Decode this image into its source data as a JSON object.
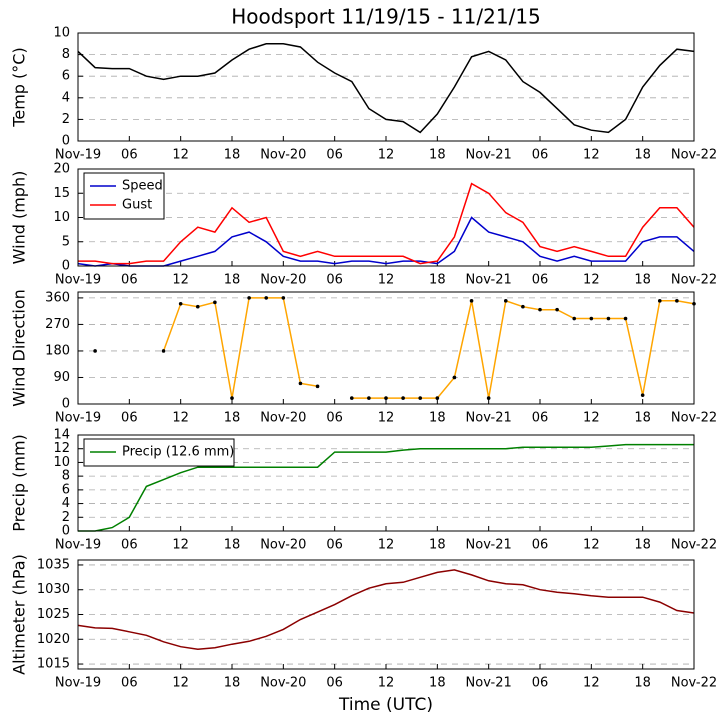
{
  "chart_data": [
    {
      "type": "line",
      "title": "Hoodsport 11/19/15 - 11/21/15",
      "ylabel": "Temp (°C)",
      "x": [
        0,
        2,
        4,
        6,
        8,
        10,
        12,
        14,
        16,
        18,
        20,
        22,
        24,
        26,
        28,
        30,
        32,
        34,
        36,
        38,
        40,
        42,
        44,
        46,
        48,
        50,
        52,
        54,
        56,
        58,
        60,
        62,
        64,
        66,
        68,
        70,
        72
      ],
      "xlim": [
        0,
        72
      ],
      "xticks": [
        {
          "value": 0,
          "label": "Nov-19"
        },
        {
          "value": 6,
          "label": "06"
        },
        {
          "value": 12,
          "label": "12"
        },
        {
          "value": 18,
          "label": "18"
        },
        {
          "value": 24,
          "label": "Nov-20"
        },
        {
          "value": 30,
          "label": "06"
        },
        {
          "value": 36,
          "label": "12"
        },
        {
          "value": 42,
          "label": "18"
        },
        {
          "value": 48,
          "label": "Nov-21"
        },
        {
          "value": 54,
          "label": "06"
        },
        {
          "value": 60,
          "label": "12"
        },
        {
          "value": 66,
          "label": "18"
        },
        {
          "value": 72,
          "label": "Nov-22"
        }
      ],
      "ylim": [
        0,
        10
      ],
      "yticks": [
        0,
        2,
        4,
        6,
        8,
        10
      ],
      "grid": true,
      "series": [
        {
          "color": "#000000",
          "values": [
            8.3,
            6.8,
            6.7,
            6.7,
            6,
            5.7,
            6,
            6,
            6.3,
            7.5,
            8.5,
            9,
            9,
            8.7,
            7.3,
            6.3,
            5.5,
            3,
            2,
            1.8,
            0.8,
            2.5,
            5,
            7.8,
            8.3,
            7.5,
            5.5,
            4.5,
            3,
            1.5,
            1,
            0.8,
            2,
            5,
            7,
            8.5,
            8.3
          ]
        }
      ]
    },
    {
      "type": "line",
      "ylabel": "Wind (mph)",
      "legend": "upper left",
      "x": [
        0,
        2,
        4,
        6,
        8,
        10,
        12,
        14,
        16,
        18,
        20,
        22,
        24,
        26,
        28,
        30,
        32,
        34,
        36,
        38,
        40,
        42,
        44,
        46,
        48,
        50,
        52,
        54,
        56,
        58,
        60,
        62,
        64,
        66,
        68,
        70,
        72
      ],
      "xlim": [
        0,
        72
      ],
      "xticks": [
        {
          "value": 0,
          "label": "Nov-19"
        },
        {
          "value": 6,
          "label": "06"
        },
        {
          "value": 12,
          "label": "12"
        },
        {
          "value": 18,
          "label": "18"
        },
        {
          "value": 24,
          "label": "Nov-20"
        },
        {
          "value": 30,
          "label": "06"
        },
        {
          "value": 36,
          "label": "12"
        },
        {
          "value": 42,
          "label": "18"
        },
        {
          "value": 48,
          "label": "Nov-21"
        },
        {
          "value": 54,
          "label": "06"
        },
        {
          "value": 60,
          "label": "12"
        },
        {
          "value": 66,
          "label": "18"
        },
        {
          "value": 72,
          "label": "Nov-22"
        }
      ],
      "ylim": [
        0,
        20
      ],
      "yticks": [
        0,
        5,
        10,
        15,
        20
      ],
      "grid": true,
      "series": [
        {
          "name": "Speed",
          "color": "#0000cc",
          "values": [
            0.5,
            0,
            0.5,
            0,
            0,
            0,
            1,
            2,
            3,
            6,
            7,
            5,
            2,
            1,
            1,
            0.5,
            1,
            1,
            0.5,
            1,
            1,
            0.5,
            3,
            10,
            7,
            6,
            5,
            2,
            1,
            2,
            1,
            1,
            1,
            5,
            6,
            6,
            3
          ]
        },
        {
          "name": "Gust",
          "color": "#ff0000",
          "values": [
            1,
            1,
            0.5,
            0.5,
            1,
            1,
            5,
            8,
            7,
            12,
            9,
            10,
            3,
            2,
            3,
            2,
            2,
            2,
            2,
            2,
            0.5,
            1,
            6,
            17,
            15,
            11,
            9,
            4,
            3,
            4,
            3,
            2,
            2,
            8,
            12,
            12,
            8
          ]
        }
      ]
    },
    {
      "type": "line",
      "ylabel": "Wind Direction",
      "markers": true,
      "x": [
        0,
        2,
        4,
        6,
        8,
        10,
        12,
        14,
        16,
        18,
        20,
        22,
        24,
        26,
        28,
        30,
        32,
        34,
        36,
        38,
        40,
        42,
        44,
        46,
        48,
        50,
        52,
        54,
        56,
        58,
        60,
        62,
        64,
        66,
        68,
        70,
        72
      ],
      "xlim": [
        0,
        72
      ],
      "xticks": [
        {
          "value": 0,
          "label": "Nov-19"
        },
        {
          "value": 6,
          "label": "06"
        },
        {
          "value": 12,
          "label": "12"
        },
        {
          "value": 18,
          "label": "18"
        },
        {
          "value": 24,
          "label": "Nov-20"
        },
        {
          "value": 30,
          "label": "06"
        },
        {
          "value": 36,
          "label": "12"
        },
        {
          "value": 42,
          "label": "18"
        },
        {
          "value": 48,
          "label": "Nov-21"
        },
        {
          "value": 54,
          "label": "06"
        },
        {
          "value": 60,
          "label": "12"
        },
        {
          "value": 66,
          "label": "18"
        },
        {
          "value": 72,
          "label": "Nov-22"
        }
      ],
      "ylim": [
        0,
        380
      ],
      "yticks": [
        0,
        90,
        180,
        270,
        360
      ],
      "grid": true,
      "series": [
        {
          "color": "#ffa500",
          "values": [
            null,
            180,
            null,
            null,
            null,
            180,
            340,
            330,
            345,
            20,
            360,
            360,
            360,
            70,
            60,
            null,
            20,
            20,
            20,
            20,
            20,
            20,
            90,
            350,
            20,
            350,
            330,
            320,
            320,
            290,
            290,
            290,
            290,
            30,
            350,
            350,
            340
          ]
        }
      ]
    },
    {
      "type": "line",
      "ylabel": "Precip (mm)",
      "legend": "upper left",
      "x": [
        0,
        2,
        4,
        6,
        8,
        10,
        12,
        14,
        16,
        18,
        20,
        22,
        24,
        26,
        28,
        30,
        32,
        34,
        36,
        38,
        40,
        42,
        44,
        46,
        48,
        50,
        52,
        54,
        56,
        58,
        60,
        62,
        64,
        66,
        68,
        70,
        72
      ],
      "xlim": [
        0,
        72
      ],
      "xticks": [
        {
          "value": 0,
          "label": "Nov-19"
        },
        {
          "value": 6,
          "label": "06"
        },
        {
          "value": 12,
          "label": "12"
        },
        {
          "value": 18,
          "label": "18"
        },
        {
          "value": 24,
          "label": "Nov-20"
        },
        {
          "value": 30,
          "label": "06"
        },
        {
          "value": 36,
          "label": "12"
        },
        {
          "value": 42,
          "label": "18"
        },
        {
          "value": 48,
          "label": "Nov-21"
        },
        {
          "value": 54,
          "label": "06"
        },
        {
          "value": 60,
          "label": "12"
        },
        {
          "value": 66,
          "label": "18"
        },
        {
          "value": 72,
          "label": "Nov-22"
        }
      ],
      "ylim": [
        0,
        14
      ],
      "yticks": [
        0,
        2,
        4,
        6,
        8,
        10,
        12,
        14
      ],
      "grid": true,
      "series": [
        {
          "name": "Precip (12.6 mm)",
          "color": "#008000",
          "values": [
            0,
            0,
            0.5,
            2,
            6.5,
            7.5,
            8.5,
            9.3,
            9.3,
            9.3,
            9.3,
            9.3,
            9.3,
            9.3,
            9.3,
            11.5,
            11.5,
            11.5,
            11.5,
            11.8,
            12,
            12,
            12,
            12,
            12,
            12,
            12.2,
            12.2,
            12.2,
            12.2,
            12.2,
            12.4,
            12.6,
            12.6,
            12.6,
            12.6,
            12.6
          ]
        }
      ]
    },
    {
      "type": "line",
      "ylabel": "Altimeter (hPa)",
      "xlabel": "Time (UTC)",
      "x": [
        0,
        2,
        4,
        6,
        8,
        10,
        12,
        14,
        16,
        18,
        20,
        22,
        24,
        26,
        28,
        30,
        32,
        34,
        36,
        38,
        40,
        42,
        44,
        46,
        48,
        50,
        52,
        54,
        56,
        58,
        60,
        62,
        64,
        66,
        68,
        70,
        72
      ],
      "xlim": [
        0,
        72
      ],
      "xticks": [
        {
          "value": 0,
          "label": "Nov-19"
        },
        {
          "value": 6,
          "label": "06"
        },
        {
          "value": 12,
          "label": "12"
        },
        {
          "value": 18,
          "label": "18"
        },
        {
          "value": 24,
          "label": "Nov-20"
        },
        {
          "value": 30,
          "label": "06"
        },
        {
          "value": 36,
          "label": "12"
        },
        {
          "value": 42,
          "label": "18"
        },
        {
          "value": 48,
          "label": "Nov-21"
        },
        {
          "value": 54,
          "label": "06"
        },
        {
          "value": 60,
          "label": "12"
        },
        {
          "value": 66,
          "label": "18"
        },
        {
          "value": 72,
          "label": "Nov-22"
        }
      ],
      "ylim": [
        1014,
        1036
      ],
      "yticks": [
        1015,
        1020,
        1025,
        1030,
        1035
      ],
      "grid": true,
      "series": [
        {
          "color": "#8b0000",
          "values": [
            1022.8,
            1022.3,
            1022.2,
            1021.5,
            1020.8,
            1019.5,
            1018.5,
            1018,
            1018.3,
            1019,
            1019.6,
            1020.6,
            1022,
            1024,
            1025.5,
            1027,
            1028.8,
            1030.3,
            1031.2,
            1031.5,
            1032.5,
            1033.5,
            1034,
            1033,
            1031.8,
            1031.2,
            1031,
            1030,
            1029.5,
            1029.2,
            1028.8,
            1028.5,
            1028.5,
            1028.5,
            1027.5,
            1025.8,
            1025.3
          ]
        }
      ]
    }
  ]
}
